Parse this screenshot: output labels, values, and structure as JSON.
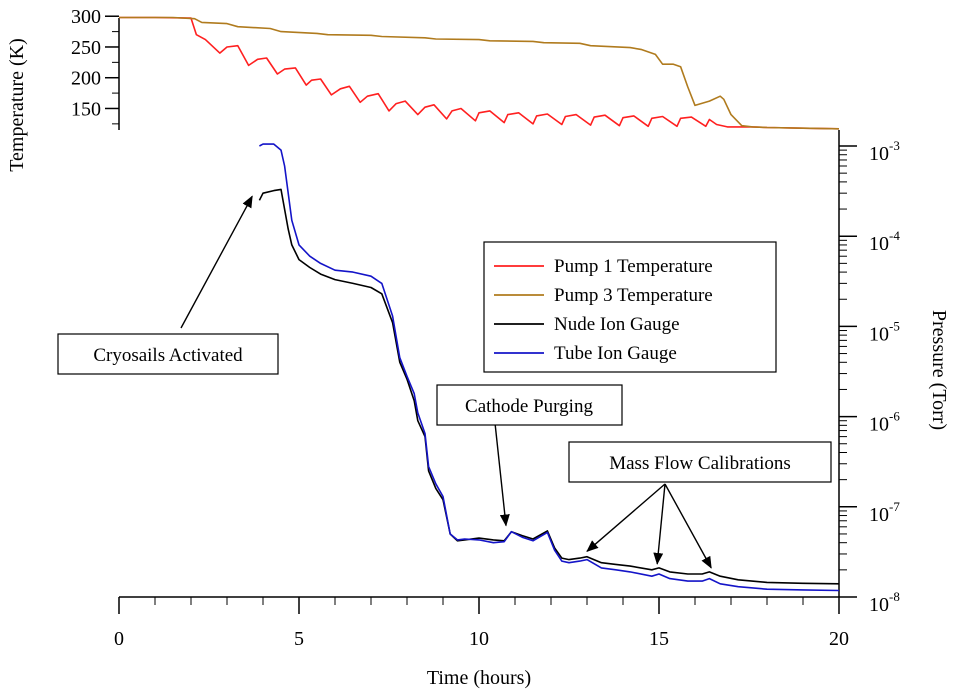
{
  "chart_data": {
    "type": "line",
    "xlabel": "Time (hours)",
    "xlim": [
      0,
      20
    ],
    "x_ticks": [
      0,
      5,
      10,
      15,
      20
    ],
    "temperature_axis": {
      "label": "Temperature (K)",
      "range": [
        115,
        302
      ],
      "ticks": [
        150,
        200,
        250,
        300
      ]
    },
    "pressure_axis": {
      "label": "Pressure (Torr)",
      "scale": "log",
      "range": [
        1e-08,
        0.0012
      ],
      "ticks": [
        {
          "value": 1e-08,
          "base": "10",
          "exp": "-8"
        },
        {
          "value": 1e-07,
          "base": "10",
          "exp": "-7"
        },
        {
          "value": 1e-06,
          "base": "10",
          "exp": "-6"
        },
        {
          "value": 1e-05,
          "base": "10",
          "exp": "-5"
        },
        {
          "value": 0.0001,
          "base": "10",
          "exp": "-4"
        },
        {
          "value": 0.001,
          "base": "10",
          "exp": "-3"
        }
      ]
    },
    "series": [
      {
        "name": "Pump 1 Temperature",
        "color": "#ff2020",
        "axis": "temperature",
        "x": [
          0,
          1,
          2.0,
          2.15,
          2.4,
          2.8,
          3.0,
          3.3,
          3.6,
          3.85,
          4.1,
          4.4,
          4.6,
          4.9,
          5.2,
          5.35,
          5.6,
          5.9,
          6.15,
          6.4,
          6.7,
          6.9,
          7.2,
          7.5,
          7.7,
          7.95,
          8.3,
          8.5,
          8.75,
          9.1,
          9.25,
          9.5,
          9.9,
          10.0,
          10.3,
          10.7,
          10.8,
          11.1,
          11.5,
          11.6,
          11.9,
          12.3,
          12.4,
          12.7,
          13.1,
          13.2,
          13.5,
          13.9,
          14.0,
          14.3,
          14.7,
          14.8,
          15.1,
          15.5,
          15.6,
          15.9,
          16.3,
          16.4,
          16.6,
          16.9,
          17.2,
          17.6,
          18,
          19,
          20
        ],
        "y": [
          298,
          298,
          297,
          270,
          262,
          240,
          250,
          252,
          220,
          230,
          232,
          206,
          214,
          216,
          188,
          196,
          198,
          172,
          182,
          186,
          160,
          170,
          174,
          146,
          158,
          162,
          140,
          152,
          156,
          133,
          146,
          150,
          130,
          143,
          146,
          127,
          140,
          143,
          125,
          138,
          141,
          124,
          137,
          140,
          123,
          136,
          139,
          122,
          135,
          138,
          121,
          134,
          137,
          121,
          134,
          136,
          121,
          132,
          124,
          120,
          120,
          120,
          119,
          118,
          117
        ]
      },
      {
        "name": "Pump 3 Temperature",
        "color": "#b07b1e",
        "axis": "temperature",
        "x": [
          0,
          1.5,
          2.1,
          2.3,
          3.0,
          3.3,
          4.2,
          4.5,
          5.5,
          5.8,
          7.0,
          7.3,
          8.5,
          8.8,
          10.0,
          10.3,
          11.5,
          11.8,
          12.8,
          13.1,
          14.2,
          14.5,
          14.9,
          15.1,
          15.4,
          15.6,
          15.8,
          16.0,
          16.4,
          16.7,
          16.8,
          17.0,
          17.3,
          17.6,
          18,
          19,
          20
        ],
        "y": [
          298,
          298,
          296,
          290,
          288,
          283,
          280,
          275,
          272,
          270,
          269,
          267,
          265,
          263,
          262,
          260,
          259,
          257,
          256,
          252,
          249,
          246,
          238,
          222,
          222,
          218,
          185,
          155,
          162,
          170,
          165,
          140,
          122,
          120,
          119,
          118,
          117
        ]
      },
      {
        "name": "Nude Ion Gauge",
        "color": "#000000",
        "axis": "pressure",
        "x": [
          3.9,
          4.0,
          4.3,
          4.5,
          4.7,
          4.8,
          5.0,
          5.3,
          5.6,
          6.0,
          6.5,
          7.0,
          7.3,
          7.6,
          7.8,
          8.0,
          8.2,
          8.3,
          8.5,
          8.6,
          8.8,
          9.0,
          9.2,
          9.4,
          9.6,
          10.0,
          10.4,
          10.7,
          10.9,
          11.2,
          11.5,
          11.9,
          12.1,
          12.3,
          12.5,
          12.8,
          13.0,
          13.4,
          13.8,
          14.2,
          14.8,
          15.0,
          15.3,
          15.8,
          16.2,
          16.4,
          16.7,
          17.2,
          18,
          19,
          20
        ],
        "y": [
          0.00025,
          0.0003,
          0.00032,
          0.00033,
          0.00012,
          8e-05,
          5.5e-05,
          4.5e-05,
          3.8e-05,
          3.3e-05,
          3e-05,
          2.7e-05,
          2.3e-05,
          1.1e-05,
          4e-06,
          2.6e-06,
          1.5e-06,
          9e-07,
          6e-07,
          2.5e-07,
          1.6e-07,
          1.2e-07,
          5e-08,
          4.2e-08,
          4.3e-08,
          4.5e-08,
          4.3e-08,
          4.2e-08,
          5.3e-08,
          4.8e-08,
          4.4e-08,
          5.4e-08,
          3.5e-08,
          2.7e-08,
          2.6e-08,
          2.7e-08,
          2.8e-08,
          2.4e-08,
          2.3e-08,
          2.2e-08,
          2e-08,
          2.1e-08,
          1.9e-08,
          1.8e-08,
          1.8e-08,
          1.9e-08,
          1.7e-08,
          1.55e-08,
          1.45e-08,
          1.42e-08,
          1.4e-08
        ]
      },
      {
        "name": "Tube Ion Gauge",
        "color": "#1414c8",
        "axis": "pressure",
        "x": [
          3.9,
          4.0,
          4.3,
          4.5,
          4.6,
          4.8,
          5.0,
          5.3,
          5.6,
          6.0,
          6.5,
          7.0,
          7.3,
          7.6,
          7.8,
          8.0,
          8.2,
          8.3,
          8.5,
          8.6,
          8.8,
          9.0,
          9.2,
          9.4,
          9.6,
          10.0,
          10.4,
          10.7,
          10.9,
          11.2,
          11.5,
          11.9,
          12.1,
          12.3,
          12.5,
          12.8,
          13.0,
          13.4,
          13.8,
          14.2,
          14.8,
          15.0,
          15.3,
          15.8,
          16.2,
          16.4,
          16.7,
          17.2,
          18,
          19,
          20
        ],
        "y": [
          0.001,
          0.00105,
          0.00105,
          0.0009,
          0.0006,
          0.00015,
          8e-05,
          6e-05,
          5e-05,
          4.2e-05,
          4e-05,
          3.6e-05,
          3e-05,
          1.3e-05,
          4.5e-06,
          2.8e-06,
          1.8e-06,
          1.1e-06,
          6.5e-07,
          2.8e-07,
          1.8e-07,
          1.3e-07,
          5e-08,
          4.3e-08,
          4.4e-08,
          4.3e-08,
          4e-08,
          4.1e-08,
          5.3e-08,
          4.6e-08,
          4.2e-08,
          5.2e-08,
          3.3e-08,
          2.5e-08,
          2.4e-08,
          2.5e-08,
          2.6e-08,
          2.1e-08,
          2e-08,
          1.9e-08,
          1.7e-08,
          1.8e-08,
          1.6e-08,
          1.5e-08,
          1.5e-08,
          1.6e-08,
          1.4e-08,
          1.3e-08,
          1.22e-08,
          1.2e-08,
          1.18e-08
        ]
      }
    ],
    "annotations": [
      {
        "text": "Cryosails Activated",
        "targets": [
          {
            "x": 3.7,
            "y": 0.00025
          }
        ]
      },
      {
        "text": "Cathode Purging",
        "targets": [
          {
            "x": 10.75,
            "y": 5.6e-08
          }
        ]
      },
      {
        "text": "Mass Flow Calibrations",
        "targets": [
          {
            "x": 13.0,
            "y": 2.9e-08
          },
          {
            "x": 14.95,
            "y": 2.1e-08
          },
          {
            "x": 16.45,
            "y": 1.9e-08
          }
        ]
      }
    ],
    "legend_position": "center-right",
    "grid": false
  }
}
